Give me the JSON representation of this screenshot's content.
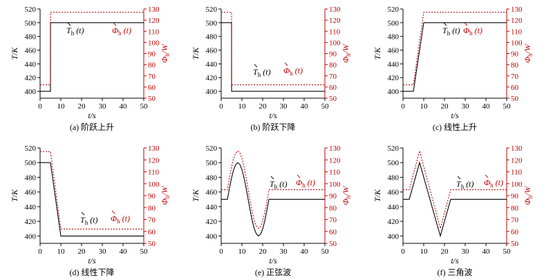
{
  "figure": {
    "axis_color": "#000000",
    "secondary_axis_color": "#c00000",
    "series_colors": {
      "temperature": "#000000",
      "heat_flux": "#c00000"
    }
  },
  "chart_data": [
    {
      "type": "line",
      "caption": "(a) 阶跃上升",
      "xlabel": "t/s",
      "ylabel": "T/K",
      "y2label": "Φh/W",
      "xlim": [
        0,
        50
      ],
      "ylim": [
        390,
        520
      ],
      "y2lim": [
        50,
        130
      ],
      "xticks": [
        0,
        10,
        20,
        30,
        40,
        50
      ],
      "yticks": [
        400,
        420,
        440,
        460,
        480,
        500,
        520
      ],
      "y2ticks": [
        50,
        60,
        70,
        80,
        90,
        100,
        110,
        120,
        130
      ],
      "annotations": [
        {
          "text": "Th (t)",
          "series": 0
        },
        {
          "text": "Φh (t)",
          "series": 1
        }
      ],
      "series": [
        {
          "axis": "left",
          "style": "solid",
          "x": [
            0,
            5,
            5,
            50
          ],
          "y": [
            400,
            400,
            500,
            500
          ]
        },
        {
          "axis": "right",
          "style": "dotted",
          "x": [
            0,
            5,
            5,
            50
          ],
          "y": [
            62,
            62,
            127,
            127
          ]
        }
      ]
    },
    {
      "type": "line",
      "caption": "(b) 阶跃下降",
      "xlabel": "t/s",
      "ylabel": "T/K",
      "y2label": "Φh/W",
      "xlim": [
        0,
        50
      ],
      "ylim": [
        390,
        520
      ],
      "y2lim": [
        50,
        130
      ],
      "xticks": [
        0,
        10,
        20,
        30,
        40,
        50
      ],
      "yticks": [
        400,
        420,
        440,
        460,
        480,
        500,
        520
      ],
      "y2ticks": [
        50,
        60,
        70,
        80,
        90,
        100,
        110,
        120,
        130
      ],
      "annotations": [
        {
          "text": "Th (t)",
          "series": 0
        },
        {
          "text": "Φh (t)",
          "series": 1
        }
      ],
      "series": [
        {
          "axis": "left",
          "style": "solid",
          "x": [
            0,
            5,
            5,
            50
          ],
          "y": [
            500,
            500,
            400,
            400
          ]
        },
        {
          "axis": "right",
          "style": "dotted",
          "x": [
            0,
            5,
            5,
            50
          ],
          "y": [
            127,
            127,
            62,
            62
          ]
        }
      ]
    },
    {
      "type": "line",
      "caption": "(c) 线性上升",
      "xlabel": "t/s",
      "ylabel": "T/K",
      "y2label": "Φh/W",
      "xlim": [
        0,
        50
      ],
      "ylim": [
        390,
        520
      ],
      "y2lim": [
        50,
        130
      ],
      "xticks": [
        0,
        10,
        20,
        30,
        40,
        50
      ],
      "yticks": [
        400,
        420,
        440,
        460,
        480,
        500,
        520
      ],
      "y2ticks": [
        50,
        60,
        70,
        80,
        90,
        100,
        110,
        120,
        130
      ],
      "annotations": [
        {
          "text": "Th (t)",
          "series": 0
        },
        {
          "text": "Φh (t)",
          "series": 1
        }
      ],
      "series": [
        {
          "axis": "left",
          "style": "solid",
          "x": [
            0,
            5,
            10,
            50
          ],
          "y": [
            400,
            400,
            500,
            500
          ]
        },
        {
          "axis": "right",
          "style": "dotted",
          "x": [
            0,
            5,
            10,
            50
          ],
          "y": [
            62,
            62,
            127,
            127
          ]
        }
      ]
    },
    {
      "type": "line",
      "caption": "(d) 线性下降",
      "xlabel": "t/s",
      "ylabel": "T/K",
      "y2label": "Φh/W",
      "xlim": [
        0,
        50
      ],
      "ylim": [
        390,
        520
      ],
      "y2lim": [
        50,
        130
      ],
      "xticks": [
        0,
        10,
        20,
        30,
        40,
        50
      ],
      "yticks": [
        400,
        420,
        440,
        460,
        480,
        500,
        520
      ],
      "y2ticks": [
        50,
        60,
        70,
        80,
        90,
        100,
        110,
        120,
        130
      ],
      "annotations": [
        {
          "text": "Th (t)",
          "series": 0
        },
        {
          "text": "Φh (t)",
          "series": 1
        }
      ],
      "series": [
        {
          "axis": "left",
          "style": "solid",
          "x": [
            0,
            5,
            10,
            50
          ],
          "y": [
            500,
            500,
            400,
            400
          ]
        },
        {
          "axis": "right",
          "style": "dotted",
          "x": [
            0,
            5,
            10,
            50
          ],
          "y": [
            127,
            127,
            62,
            62
          ]
        }
      ]
    },
    {
      "type": "line",
      "caption": "(e) 正弦波",
      "xlabel": "t/s",
      "ylabel": "T/K",
      "y2label": "Φh/W",
      "xlim": [
        0,
        50
      ],
      "ylim": [
        390,
        520
      ],
      "y2lim": [
        50,
        130
      ],
      "xticks": [
        0,
        10,
        20,
        30,
        40,
        50
      ],
      "yticks": [
        400,
        420,
        440,
        460,
        480,
        500,
        520
      ],
      "y2ticks": [
        50,
        60,
        70,
        80,
        90,
        100,
        110,
        120,
        130
      ],
      "annotations": [
        {
          "text": "Th (t)",
          "series": 0
        },
        {
          "text": "Φh (t)",
          "series": 1
        }
      ],
      "series": [
        {
          "axis": "left",
          "style": "solid",
          "x": [
            0,
            3,
            4,
            5,
            6,
            7,
            8,
            9,
            10,
            11,
            12,
            13,
            14,
            15,
            16,
            17,
            18,
            19,
            20,
            21,
            22,
            23,
            50
          ],
          "y": [
            450,
            450,
            465.6,
            479.4,
            490.5,
            497.5,
            500,
            497.5,
            490.5,
            479.4,
            465.6,
            450,
            434.4,
            420.6,
            409.5,
            402.5,
            400,
            402.5,
            409.5,
            420.6,
            434.4,
            450,
            450
          ]
        },
        {
          "axis": "right",
          "style": "dotted",
          "x": [
            0,
            3,
            4,
            5,
            6,
            7,
            8,
            9,
            10,
            11,
            12,
            13,
            14,
            15,
            16,
            17,
            18,
            19,
            20,
            21,
            22,
            23,
            50
          ],
          "y": [
            95,
            95,
            105.2,
            114.1,
            121.3,
            125.8,
            127.5,
            125.8,
            121.3,
            114.1,
            105.2,
            95,
            84.8,
            75.9,
            68.7,
            64.2,
            62.5,
            64.2,
            68.7,
            75.9,
            84.8,
            95,
            95
          ]
        }
      ]
    },
    {
      "type": "line",
      "caption": "(f) 三角波",
      "xlabel": "t/s",
      "ylabel": "T/K",
      "y2label": "Φh/W",
      "xlim": [
        0,
        50
      ],
      "ylim": [
        390,
        520
      ],
      "y2lim": [
        50,
        130
      ],
      "xticks": [
        0,
        10,
        20,
        30,
        40,
        50
      ],
      "yticks": [
        400,
        420,
        440,
        460,
        480,
        500,
        520
      ],
      "y2ticks": [
        50,
        60,
        70,
        80,
        90,
        100,
        110,
        120,
        130
      ],
      "annotations": [
        {
          "text": "Th (t)",
          "series": 0
        },
        {
          "text": "Φh (t)",
          "series": 1
        }
      ],
      "series": [
        {
          "axis": "left",
          "style": "solid",
          "x": [
            0,
            3,
            8,
            18,
            23,
            50
          ],
          "y": [
            450,
            450,
            500,
            400,
            450,
            450
          ]
        },
        {
          "axis": "right",
          "style": "dotted",
          "x": [
            0,
            3,
            8,
            18,
            23,
            50
          ],
          "y": [
            95,
            95,
            127.5,
            62.5,
            95,
            95
          ]
        }
      ]
    }
  ]
}
